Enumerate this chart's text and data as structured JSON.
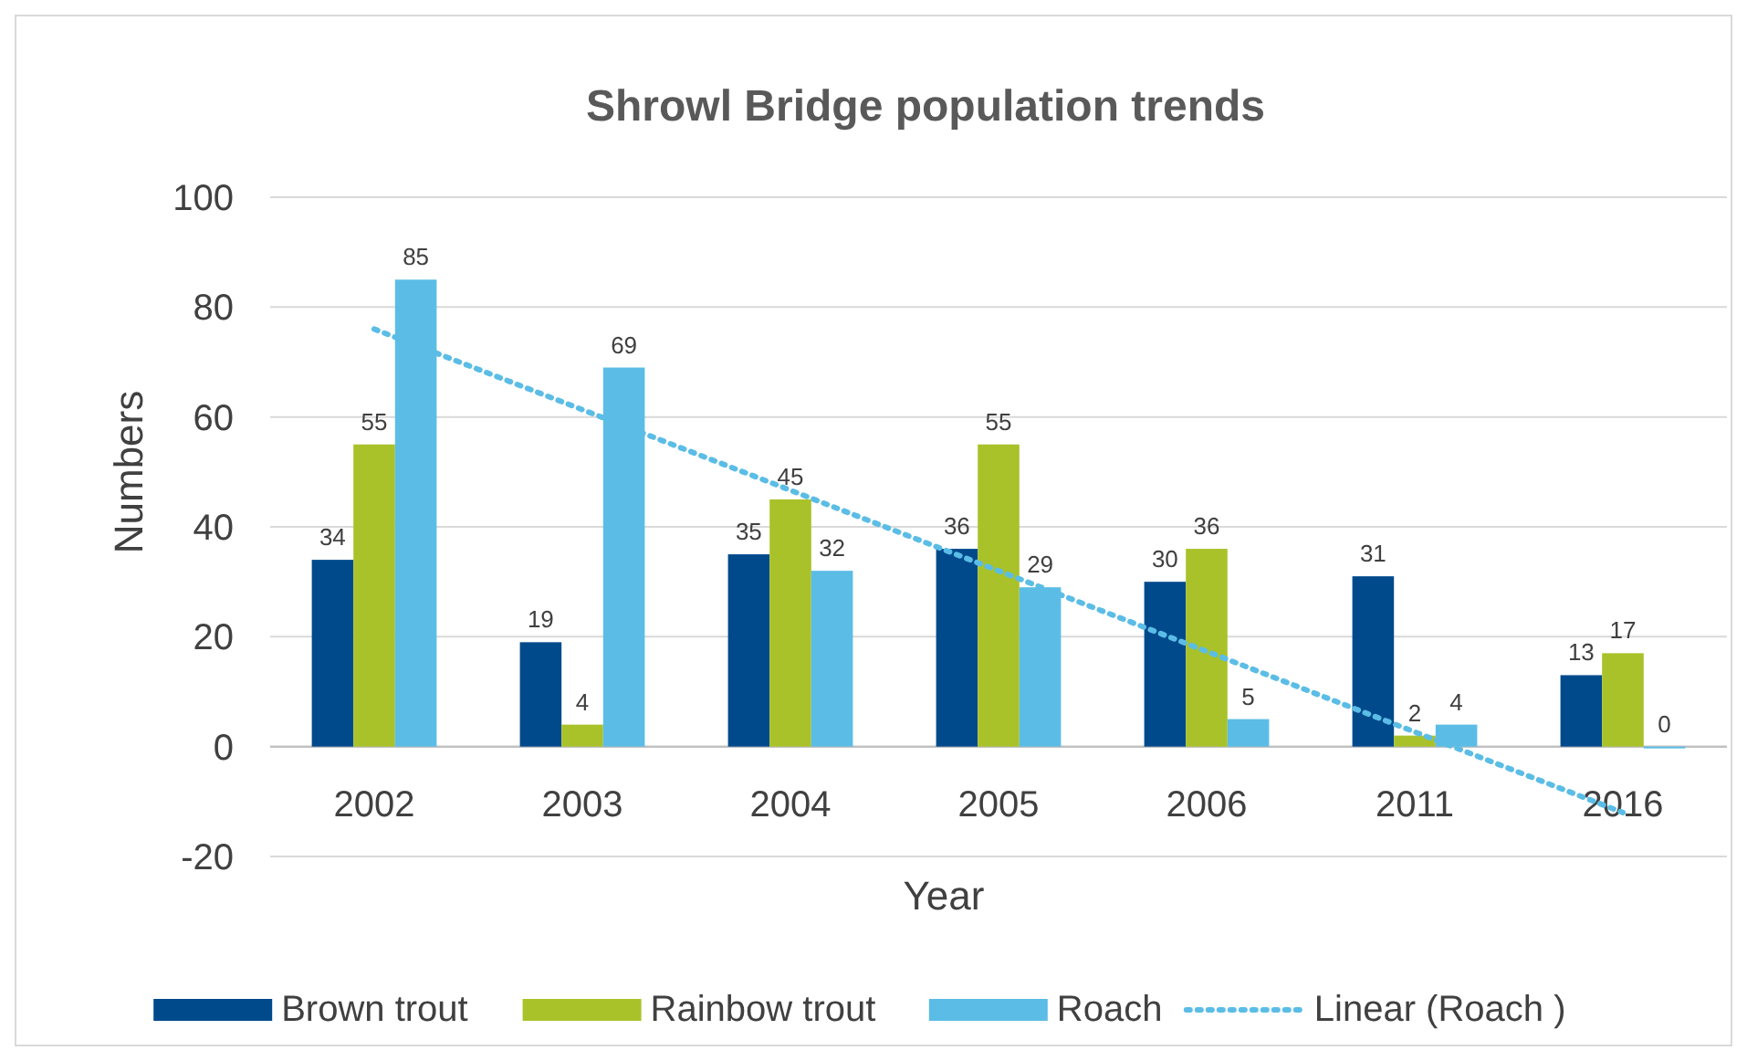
{
  "chart_data": {
    "type": "bar",
    "title": "Shrowl Bridge population trends",
    "xlabel": "Year",
    "ylabel": "Numbers",
    "categories": [
      "2002",
      "2003",
      "2004",
      "2005",
      "2006",
      "2011",
      "2016"
    ],
    "series": [
      {
        "name": "Brown trout",
        "color": "#004a8c",
        "values": [
          34,
          19,
          35,
          36,
          30,
          31,
          13
        ],
        "value_labels": [
          "34",
          "19",
          "35",
          "36",
          "30",
          "31",
          "13"
        ]
      },
      {
        "name": "Rainbow trout",
        "color": "#a9c22a",
        "values": [
          55,
          4,
          45,
          55,
          36,
          2,
          17
        ],
        "value_labels": [
          "55",
          "4",
          "45",
          "55",
          "36",
          "2",
          "17"
        ]
      },
      {
        "name": "Roach",
        "color": "#5bbde6",
        "values": [
          85,
          69,
          32,
          29,
          5,
          4,
          0
        ],
        "value_labels": [
          "85",
          "69",
          "32",
          "29",
          "5",
          "4",
          "0"
        ]
      },
      {
        "name": "Linear (Roach )",
        "type": "line",
        "color": "#5bbde6",
        "values": [
          76,
          null,
          null,
          null,
          null,
          null,
          -12
        ],
        "line_style": "dotted",
        "marker": "none"
      }
    ],
    "ylim": [
      -20,
      100
    ],
    "yticks": [
      -20,
      0,
      20,
      40,
      60,
      80,
      100
    ],
    "grid": "y",
    "legend": "bottom"
  }
}
